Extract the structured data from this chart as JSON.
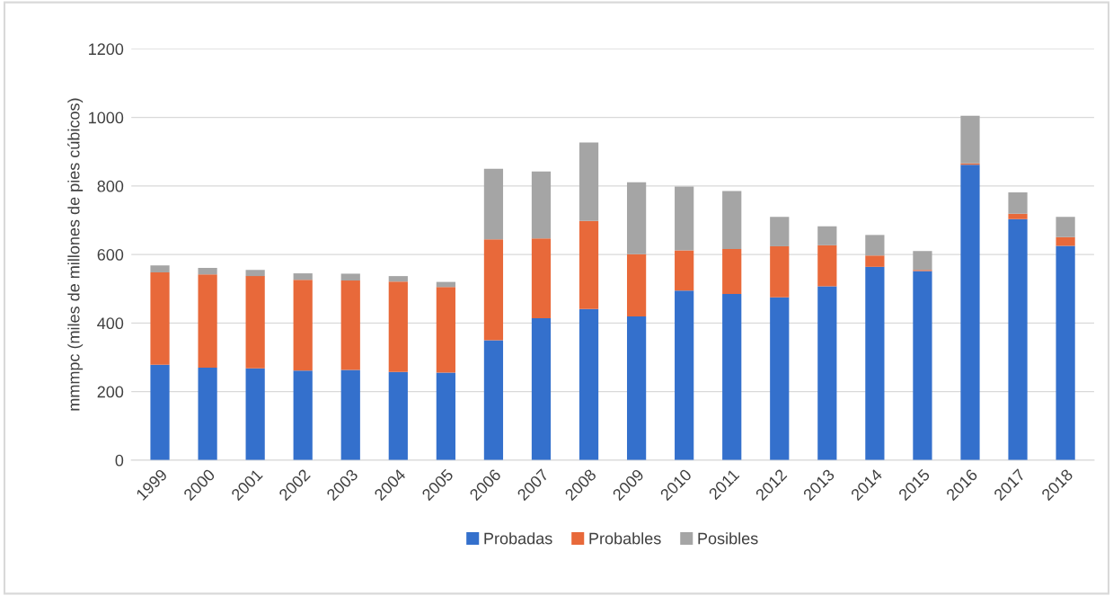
{
  "chart_data": {
    "type": "bar",
    "stacked": true,
    "ylabel": "mmmpc (miles de millones de pies cúbicos)",
    "categories": [
      "1999",
      "2000",
      "2001",
      "2002",
      "2003",
      "2004",
      "2005",
      "2006",
      "2007",
      "2008",
      "2009",
      "2010",
      "2011",
      "2012",
      "2013",
      "2014",
      "2015",
      "2016",
      "2017",
      "2018"
    ],
    "series": [
      {
        "name": "Probadas",
        "color": "#3470cc",
        "values": [
          278,
          270,
          268,
          261,
          263,
          257,
          255,
          350,
          414,
          441,
          419,
          495,
          485,
          475,
          507,
          564,
          552,
          862,
          703,
          625
        ]
      },
      {
        "name": "Probables",
        "color": "#e8693a",
        "values": [
          270,
          272,
          269,
          265,
          261,
          264,
          250,
          294,
          233,
          257,
          182,
          117,
          131,
          149,
          120,
          33,
          3,
          4,
          16,
          26
        ]
      },
      {
        "name": "Posibles",
        "color": "#a5a5a5",
        "values": [
          20,
          19,
          18,
          19,
          20,
          16,
          15,
          206,
          195,
          229,
          210,
          186,
          169,
          86,
          55,
          60,
          55,
          139,
          62,
          59
        ]
      }
    ],
    "ylim": [
      0,
      1200
    ],
    "yticks": [
      0,
      200,
      400,
      600,
      800,
      1000,
      1200
    ],
    "grid": "y",
    "legend": "bottom"
  }
}
